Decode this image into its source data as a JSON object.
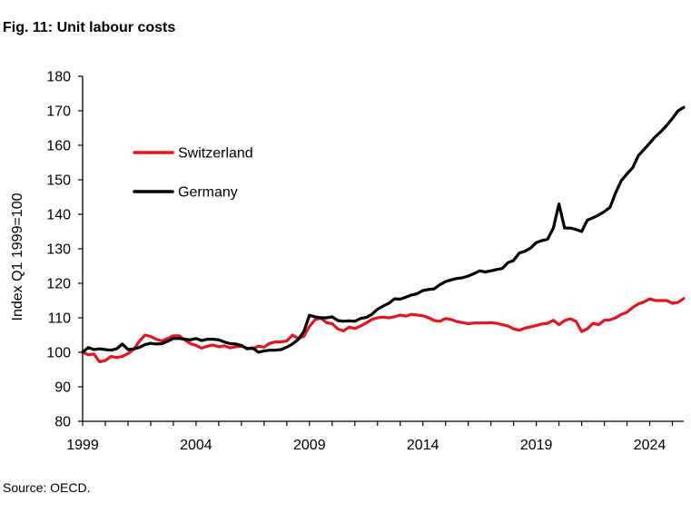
{
  "figure_title": "Fig. 11: Unit labour costs",
  "source": "Source: OECD.",
  "chart_data": {
    "type": "line",
    "title": "",
    "xlabel": "",
    "ylabel": "Index Q1 1999=100",
    "ylim": [
      80,
      180
    ],
    "yticks": [
      80,
      90,
      100,
      110,
      120,
      130,
      140,
      150,
      160,
      170,
      180
    ],
    "xlim": [
      1999,
      2025.5
    ],
    "xticks": [
      1999,
      2004,
      2009,
      2014,
      2019,
      2024
    ],
    "grid": false,
    "legend_position": "upper-left",
    "series": [
      {
        "name": "Switzerland",
        "color": "#e8141c",
        "points": [
          [
            1999.0,
            100.0
          ],
          [
            1999.25,
            99.3
          ],
          [
            1999.5,
            99.5
          ],
          [
            1999.75,
            97.2
          ],
          [
            2000.0,
            97.6
          ],
          [
            2000.25,
            98.8
          ],
          [
            2000.5,
            98.5
          ],
          [
            2000.75,
            98.8
          ],
          [
            2001.0,
            99.6
          ],
          [
            2001.25,
            100.8
          ],
          [
            2001.5,
            103.2
          ],
          [
            2001.75,
            105.0
          ],
          [
            2002.0,
            104.6
          ],
          [
            2002.25,
            103.8
          ],
          [
            2002.5,
            103.3
          ],
          [
            2002.75,
            104.0
          ],
          [
            2003.0,
            104.8
          ],
          [
            2003.25,
            104.8
          ],
          [
            2003.5,
            103.6
          ],
          [
            2003.75,
            102.5
          ],
          [
            2004.0,
            102.0
          ],
          [
            2004.25,
            101.2
          ],
          [
            2004.5,
            101.8
          ],
          [
            2004.75,
            102.1
          ],
          [
            2005.0,
            101.6
          ],
          [
            2005.25,
            101.9
          ],
          [
            2005.5,
            101.3
          ],
          [
            2005.75,
            101.6
          ],
          [
            2006.0,
            101.8
          ],
          [
            2006.25,
            101.2
          ],
          [
            2006.5,
            101.0
          ],
          [
            2006.75,
            101.8
          ],
          [
            2007.0,
            101.5
          ],
          [
            2007.25,
            102.6
          ],
          [
            2007.5,
            103.0
          ],
          [
            2007.75,
            103.0
          ],
          [
            2008.0,
            103.3
          ],
          [
            2008.25,
            105.0
          ],
          [
            2008.5,
            104.0
          ],
          [
            2008.75,
            104.6
          ],
          [
            2009.0,
            107.5
          ],
          [
            2009.25,
            109.5
          ],
          [
            2009.5,
            109.9
          ],
          [
            2009.75,
            108.6
          ],
          [
            2010.0,
            108.3
          ],
          [
            2010.25,
            106.8
          ],
          [
            2010.5,
            106.2
          ],
          [
            2010.75,
            107.3
          ],
          [
            2011.0,
            106.9
          ],
          [
            2011.25,
            107.6
          ],
          [
            2011.5,
            108.5
          ],
          [
            2011.75,
            109.5
          ],
          [
            2012.0,
            110.0
          ],
          [
            2012.25,
            110.2
          ],
          [
            2012.5,
            110.0
          ],
          [
            2012.75,
            110.3
          ],
          [
            2013.0,
            110.8
          ],
          [
            2013.25,
            110.5
          ],
          [
            2013.5,
            111.0
          ],
          [
            2013.75,
            110.8
          ],
          [
            2014.0,
            110.6
          ],
          [
            2014.25,
            110.0
          ],
          [
            2014.5,
            109.2
          ],
          [
            2014.75,
            109.0
          ],
          [
            2015.0,
            109.8
          ],
          [
            2015.25,
            109.5
          ],
          [
            2015.5,
            108.9
          ],
          [
            2015.75,
            108.6
          ],
          [
            2016.0,
            108.3
          ],
          [
            2016.25,
            108.5
          ],
          [
            2016.5,
            108.5
          ],
          [
            2016.75,
            108.5
          ],
          [
            2017.0,
            108.6
          ],
          [
            2017.25,
            108.4
          ],
          [
            2017.5,
            108.0
          ],
          [
            2017.75,
            107.6
          ],
          [
            2018.0,
            106.8
          ],
          [
            2018.25,
            106.4
          ],
          [
            2018.5,
            107.0
          ],
          [
            2018.75,
            107.4
          ],
          [
            2019.0,
            107.8
          ],
          [
            2019.25,
            108.2
          ],
          [
            2019.5,
            108.4
          ],
          [
            2019.75,
            109.3
          ],
          [
            2020.0,
            108.0
          ],
          [
            2020.25,
            109.2
          ],
          [
            2020.5,
            109.7
          ],
          [
            2020.75,
            109.0
          ],
          [
            2021.0,
            106.0
          ],
          [
            2021.25,
            106.8
          ],
          [
            2021.5,
            108.4
          ],
          [
            2021.75,
            108.0
          ],
          [
            2022.0,
            109.3
          ],
          [
            2022.25,
            109.4
          ],
          [
            2022.5,
            110.0
          ],
          [
            2022.75,
            111.0
          ],
          [
            2023.0,
            111.6
          ],
          [
            2023.25,
            113.0
          ],
          [
            2023.5,
            114.0
          ],
          [
            2023.75,
            114.6
          ],
          [
            2024.0,
            115.5
          ],
          [
            2024.25,
            115.0
          ],
          [
            2024.5,
            115.0
          ],
          [
            2024.75,
            115.0
          ],
          [
            2025.0,
            114.2
          ],
          [
            2025.25,
            114.5
          ],
          [
            2025.5,
            115.6
          ]
        ]
      },
      {
        "name": "Germany",
        "color": "#000000",
        "points": [
          [
            1999.0,
            100.0
          ],
          [
            1999.25,
            101.4
          ],
          [
            1999.5,
            100.8
          ],
          [
            1999.75,
            101.0
          ],
          [
            2000.0,
            100.8
          ],
          [
            2000.25,
            100.6
          ],
          [
            2000.5,
            101.0
          ],
          [
            2000.75,
            102.4
          ],
          [
            2001.0,
            100.8
          ],
          [
            2001.25,
            101.0
          ],
          [
            2001.5,
            101.4
          ],
          [
            2001.75,
            102.2
          ],
          [
            2002.0,
            102.6
          ],
          [
            2002.25,
            102.4
          ],
          [
            2002.5,
            102.5
          ],
          [
            2002.75,
            103.2
          ],
          [
            2003.0,
            104.0
          ],
          [
            2003.25,
            104.0
          ],
          [
            2003.5,
            103.8
          ],
          [
            2003.75,
            103.6
          ],
          [
            2004.0,
            104.0
          ],
          [
            2004.25,
            103.4
          ],
          [
            2004.5,
            103.8
          ],
          [
            2004.75,
            103.8
          ],
          [
            2005.0,
            103.6
          ],
          [
            2005.25,
            103.0
          ],
          [
            2005.5,
            102.5
          ],
          [
            2005.75,
            102.4
          ],
          [
            2006.0,
            102.0
          ],
          [
            2006.25,
            101.0
          ],
          [
            2006.5,
            101.3
          ],
          [
            2006.75,
            100.0
          ],
          [
            2007.0,
            100.4
          ],
          [
            2007.25,
            100.6
          ],
          [
            2007.5,
            100.6
          ],
          [
            2007.75,
            100.8
          ],
          [
            2008.0,
            101.5
          ],
          [
            2008.25,
            102.4
          ],
          [
            2008.5,
            103.7
          ],
          [
            2008.75,
            106.0
          ],
          [
            2009.0,
            110.7
          ],
          [
            2009.25,
            110.3
          ],
          [
            2009.5,
            110.0
          ],
          [
            2009.75,
            110.0
          ],
          [
            2010.0,
            110.3
          ],
          [
            2010.25,
            109.2
          ],
          [
            2010.5,
            109.0
          ],
          [
            2010.75,
            109.1
          ],
          [
            2011.0,
            109.0
          ],
          [
            2011.25,
            109.8
          ],
          [
            2011.5,
            110.1
          ],
          [
            2011.75,
            111.0
          ],
          [
            2012.0,
            112.5
          ],
          [
            2012.25,
            113.4
          ],
          [
            2012.5,
            114.2
          ],
          [
            2012.75,
            115.5
          ],
          [
            2013.0,
            115.4
          ],
          [
            2013.25,
            116.0
          ],
          [
            2013.5,
            116.6
          ],
          [
            2013.75,
            117.0
          ],
          [
            2014.0,
            117.9
          ],
          [
            2014.25,
            118.2
          ],
          [
            2014.5,
            118.4
          ],
          [
            2014.75,
            119.6
          ],
          [
            2015.0,
            120.5
          ],
          [
            2015.25,
            121.0
          ],
          [
            2015.5,
            121.4
          ],
          [
            2015.75,
            121.6
          ],
          [
            2016.0,
            122.1
          ],
          [
            2016.25,
            122.8
          ],
          [
            2016.5,
            123.6
          ],
          [
            2016.75,
            123.3
          ],
          [
            2017.0,
            123.6
          ],
          [
            2017.25,
            124.0
          ],
          [
            2017.5,
            124.3
          ],
          [
            2017.75,
            126.0
          ],
          [
            2018.0,
            126.6
          ],
          [
            2018.25,
            128.8
          ],
          [
            2018.5,
            129.3
          ],
          [
            2018.75,
            130.2
          ],
          [
            2019.0,
            131.8
          ],
          [
            2019.25,
            132.4
          ],
          [
            2019.5,
            132.8
          ],
          [
            2019.75,
            136.0
          ],
          [
            2020.0,
            143.0
          ],
          [
            2020.25,
            136.0
          ],
          [
            2020.5,
            136.0
          ],
          [
            2020.75,
            135.6
          ],
          [
            2021.0,
            135.0
          ],
          [
            2021.25,
            138.3
          ],
          [
            2021.5,
            139.0
          ],
          [
            2021.75,
            139.8
          ],
          [
            2022.0,
            140.8
          ],
          [
            2022.25,
            142.0
          ],
          [
            2022.5,
            146.3
          ],
          [
            2022.75,
            149.8
          ],
          [
            2023.0,
            151.7
          ],
          [
            2023.25,
            153.5
          ],
          [
            2023.5,
            157.0
          ],
          [
            2023.75,
            158.8
          ],
          [
            2024.0,
            160.6
          ],
          [
            2024.25,
            162.5
          ],
          [
            2024.5,
            164.0
          ],
          [
            2024.75,
            165.8
          ],
          [
            2025.0,
            167.8
          ],
          [
            2025.25,
            170.0
          ],
          [
            2025.5,
            171.0
          ]
        ]
      }
    ]
  }
}
